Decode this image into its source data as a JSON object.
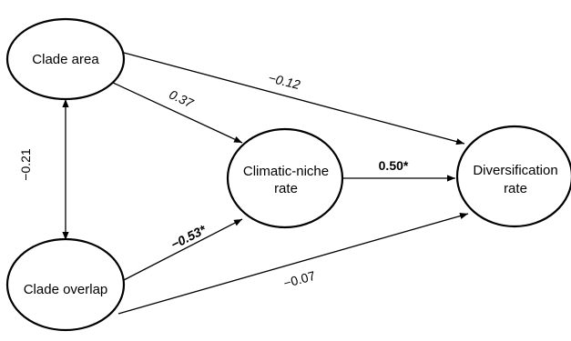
{
  "nodes": {
    "clade_area": {
      "line1": "Clade area"
    },
    "clade_overlap": {
      "line1": "Clade overlap"
    },
    "climatic_niche_rate": {
      "line1": "Climatic-niche",
      "line2": "rate"
    },
    "diversification_rate": {
      "line1": "Diversification",
      "line2": "rate"
    }
  },
  "edges": {
    "area_to_diversification": "−0.12",
    "area_to_niche": "0.37",
    "area_overlap_correlation": "−0.21",
    "overlap_to_niche": "−0.53*",
    "niche_to_diversification": "0.50*",
    "overlap_to_diversification": "−0.07"
  },
  "colors": {
    "stroke": "#000000",
    "background": "#ffffff"
  }
}
